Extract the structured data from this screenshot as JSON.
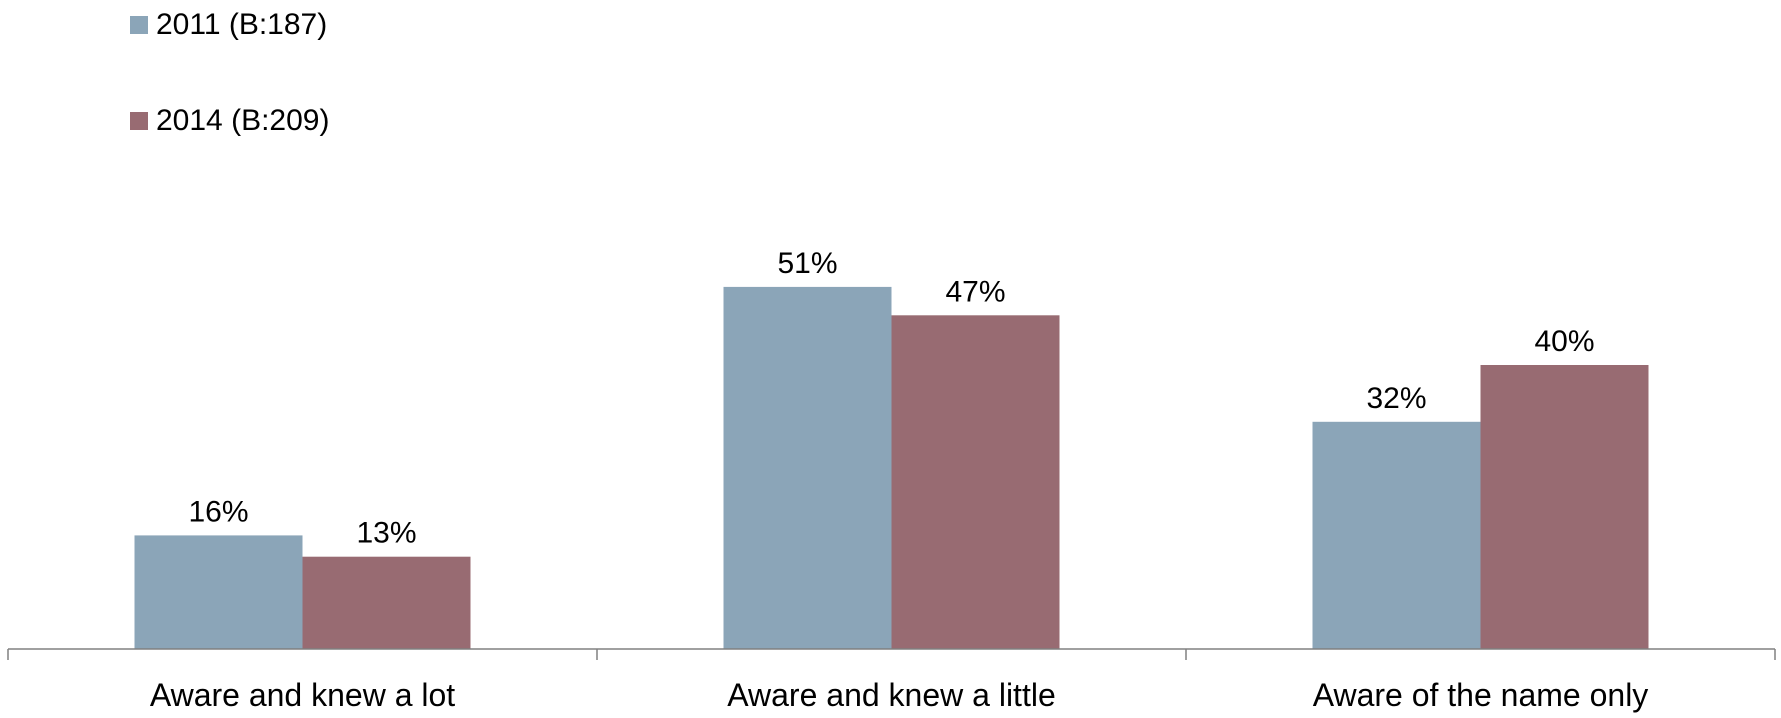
{
  "chart_data": {
    "type": "bar",
    "title": "",
    "xlabel": "",
    "ylabel": "",
    "ylim": [
      0,
      60
    ],
    "grid": false,
    "legend_position": "top-left",
    "categories": [
      "Aware and knew a lot",
      "Aware and knew a little",
      "Aware of the name only"
    ],
    "series": [
      {
        "name": "2011 (B:187)",
        "values": [
          16,
          51,
          32
        ],
        "labels": [
          "16%",
          "51%",
          "32%"
        ],
        "color": "#8BA5B8"
      },
      {
        "name": "2014 (B:209)",
        "values": [
          13,
          47,
          40
        ],
        "labels": [
          "13%",
          "47%",
          "40%"
        ],
        "color": "#986B72"
      }
    ]
  },
  "colors": {
    "axis": "#808080"
  }
}
